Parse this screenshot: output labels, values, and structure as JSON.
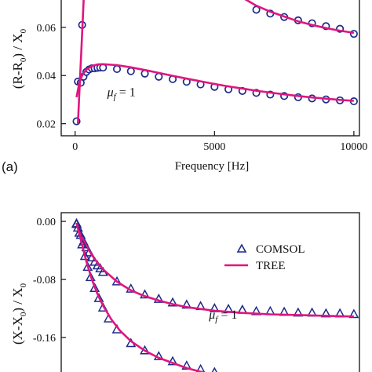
{
  "chart_data": [
    {
      "type": "scatter",
      "panel_label": "(a)",
      "xlabel": "Frequency [Hz]",
      "ylabel_visible": "(R-R0) / X0",
      "xlim": [
        -500,
        10200
      ],
      "ylim": [
        0.015,
        0.072
      ],
      "xticks": [
        0,
        5000,
        10000
      ],
      "xtick_labels": [
        "0",
        "5000",
        "10000"
      ],
      "yticks": [
        0.02,
        0.04,
        0.06
      ],
      "ytick_labels": [
        "0.02",
        "0.04",
        "0.06"
      ],
      "annotations": [
        {
          "text": "μf = 1",
          "x": 1150,
          "y": 0.0315
        }
      ],
      "series": [
        {
          "marker": "circle",
          "color": "#1c2a8a",
          "x": [
            50,
            100,
            200,
            300,
            400,
            500,
            600,
            700,
            800,
            900,
            1000,
            1500,
            2000,
            2500,
            3000,
            3500,
            4000,
            4500,
            5000,
            5500,
            6000,
            6500,
            7000,
            7500,
            8000,
            8500,
            9000,
            9500,
            10000
          ],
          "y": [
            0.021,
            0.0375,
            0.037,
            0.0395,
            0.0415,
            0.0425,
            0.043,
            0.043,
            0.0432,
            0.0433,
            0.0433,
            0.0427,
            0.0418,
            0.0408,
            0.0395,
            0.0385,
            0.0374,
            0.0363,
            0.0353,
            0.0343,
            0.0336,
            0.0328,
            0.0321,
            0.0315,
            0.031,
            0.0305,
            0.0301,
            0.0297,
            0.0293
          ]
        },
        {
          "marker": "line",
          "color": "#e0157f",
          "x": [
            50,
            150,
            250,
            400,
            600,
            800,
            1000,
            1500,
            2000,
            2500,
            3000,
            3500,
            4000,
            4500,
            5000,
            5500,
            6000,
            6500,
            7000,
            7500,
            8000,
            8500,
            9000,
            9500,
            10000
          ],
          "y": [
            0.031,
            0.037,
            0.04,
            0.0425,
            0.044,
            0.0446,
            0.0447,
            0.0443,
            0.0434,
            0.0423,
            0.0411,
            0.0399,
            0.0387,
            0.0376,
            0.0365,
            0.0355,
            0.0346,
            0.0337,
            0.0329,
            0.0322,
            0.0315,
            0.0309,
            0.0304,
            0.0299,
            0.0295
          ]
        },
        {
          "marker": "circle",
          "color": "#1c2a8a",
          "x": [
            250,
            6500,
            7000,
            7500,
            8000,
            8500,
            9000,
            9500,
            10000
          ],
          "y": [
            0.061,
            0.0673,
            0.0657,
            0.0643,
            0.0629,
            0.0617,
            0.0605,
            0.0594,
            0.0573
          ]
        },
        {
          "marker": "line",
          "color": "#e0157f",
          "x": [
            100,
            160,
            220,
            280,
            340
          ],
          "y": [
            0.02,
            0.035,
            0.05,
            0.065,
            0.08
          ]
        },
        {
          "marker": "line",
          "color": "#e0157f",
          "x": [
            6050,
            6500,
            7000,
            7500,
            8000,
            8500,
            9000,
            9500,
            10000
          ],
          "y": [
            0.072,
            0.069,
            0.0665,
            0.0645,
            0.0625,
            0.061,
            0.0597,
            0.0586,
            0.0577
          ]
        }
      ]
    },
    {
      "type": "scatter",
      "panel_label": "",
      "xlabel": "",
      "ylabel_visible": "(X-X0) / X0",
      "xlim": [
        -500,
        10200
      ],
      "ylim": [
        -0.215,
        0.012
      ],
      "yticks": [
        0.0,
        -0.08,
        -0.16
      ],
      "ytick_labels": [
        "0.00",
        "-0.08",
        "-0.16"
      ],
      "legend": {
        "placement": "top-right",
        "entries": [
          {
            "label": "COMSOL",
            "marker": "triangle",
            "color": "#1c2a8a"
          },
          {
            "label": "TREE",
            "marker": "line",
            "color": "#e0157f"
          }
        ]
      },
      "annotations": [
        {
          "text": "μf = 1",
          "x": 4800,
          "y": -0.134
        }
      ],
      "series": [
        {
          "marker": "triangle",
          "color": "#1c2a8a",
          "x": [
            50,
            100,
            200,
            300,
            400,
            500,
            600,
            700,
            800,
            900,
            1000,
            1500,
            2000,
            2500,
            3000,
            3500,
            4000,
            4500,
            5000,
            5500,
            6000,
            6500,
            7000,
            7500,
            8000,
            8500,
            9000,
            9500,
            10000
          ],
          "y": [
            -0.003,
            -0.009,
            -0.019,
            -0.028,
            -0.036,
            -0.043,
            -0.05,
            -0.056,
            -0.061,
            -0.065,
            -0.07,
            -0.083,
            -0.093,
            -0.101,
            -0.107,
            -0.112,
            -0.115,
            -0.117,
            -0.12,
            -0.121,
            -0.122,
            -0.124,
            -0.124,
            -0.125,
            -0.126,
            -0.126,
            -0.127,
            -0.127,
            -0.128
          ]
        },
        {
          "marker": "line",
          "color": "#e0157f",
          "x": [
            50,
            150,
            300,
            500,
            700,
            1000,
            1500,
            2000,
            2500,
            3000,
            3500,
            4000,
            5000,
            6000,
            7000,
            8000,
            9000,
            10000
          ],
          "y": [
            -0.002,
            -0.012,
            -0.026,
            -0.04,
            -0.052,
            -0.066,
            -0.083,
            -0.095,
            -0.103,
            -0.109,
            -0.114,
            -0.118,
            -0.123,
            -0.126,
            -0.128,
            -0.129,
            -0.13,
            -0.131
          ]
        },
        {
          "marker": "triangle",
          "color": "#1c2a8a",
          "x": [
            50,
            150,
            250,
            350,
            450,
            550,
            700,
            850,
            1000,
            1200,
            1500,
            2000,
            2500,
            3000,
            3500,
            4000,
            4500,
            5000
          ],
          "y": [
            -0.004,
            -0.016,
            -0.032,
            -0.048,
            -0.063,
            -0.077,
            -0.092,
            -0.106,
            -0.119,
            -0.134,
            -0.149,
            -0.168,
            -0.178,
            -0.186,
            -0.193,
            -0.199,
            -0.204,
            -0.208
          ]
        },
        {
          "marker": "line",
          "color": "#e0157f",
          "x": [
            50,
            200,
            400,
            600,
            800,
            1000,
            1300,
            1600,
            2000,
            2500,
            3000,
            3500,
            4000,
            4500,
            5000
          ],
          "y": [
            -0.002,
            -0.025,
            -0.055,
            -0.08,
            -0.1,
            -0.116,
            -0.135,
            -0.15,
            -0.165,
            -0.178,
            -0.188,
            -0.195,
            -0.202,
            -0.207,
            -0.212
          ]
        }
      ]
    }
  ]
}
